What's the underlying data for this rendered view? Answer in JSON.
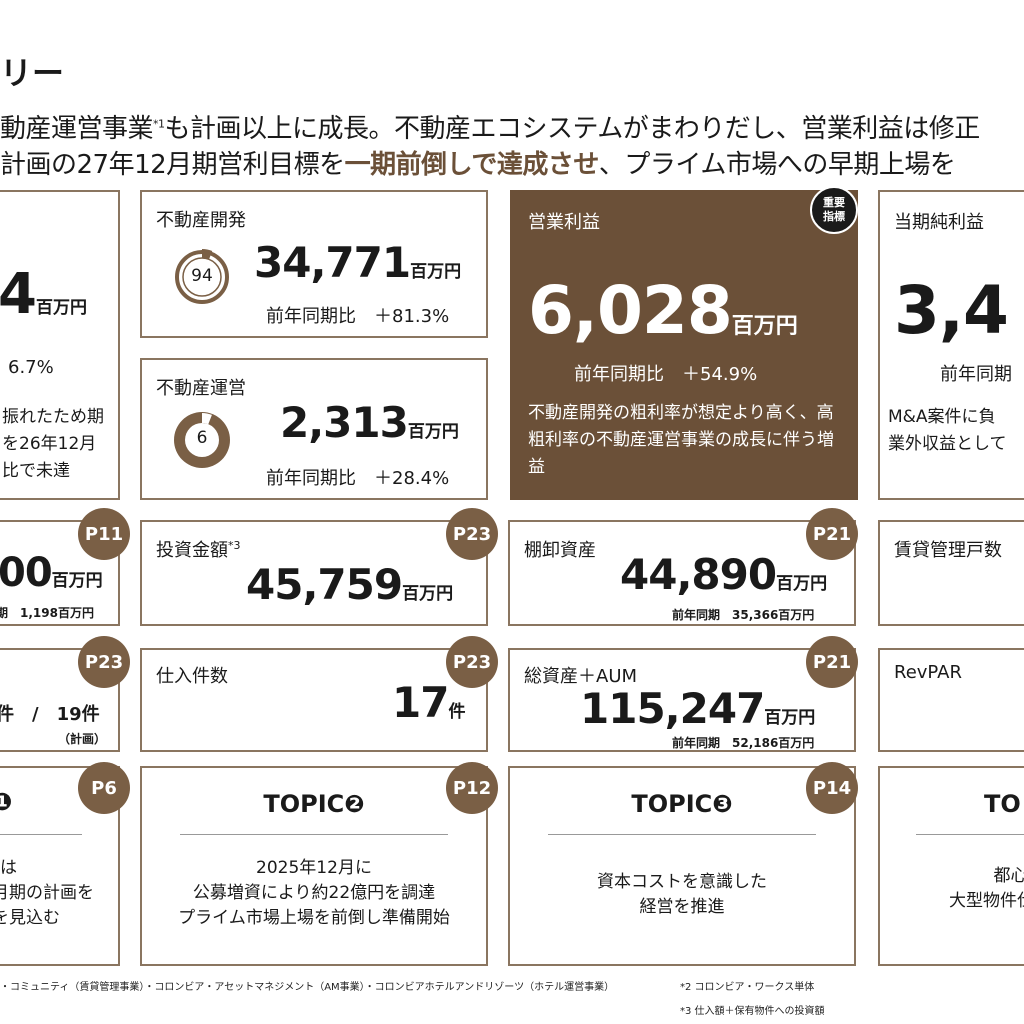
{
  "header": {
    "title": "リー",
    "lead_line1_a": "動産運営事業",
    "lead_line1_sup": "*1",
    "lead_line1_b": "も計画以上に成長。不動産エコシステムがまわりだし、営業利益は修正",
    "lead_line2_a": "計画の27年12月期営利目標を",
    "lead_line2_hl": "一期前倒しで達成させ",
    "lead_line2_b": "、プライム市場への早期上場を"
  },
  "card_left_partial": {
    "value": "4",
    "unit": "百万円",
    "yoy": "6.7%",
    "desc1": "振れたため期",
    "desc2": "を26年12月",
    "desc3": "比で未達"
  },
  "card_dev": {
    "label": "不動産開発",
    "ring_value": "94",
    "ring_fill": 0.06,
    "value": "34,771",
    "unit": "百万円",
    "yoy": "前年同期比　＋81.3%"
  },
  "card_ops": {
    "label": "不動産運営",
    "ring_value": "6",
    "ring_fill": 0.94,
    "value": "2,313",
    "unit": "百万円",
    "yoy": "前年同期比　＋28.4%"
  },
  "card_op_income": {
    "label": "営業利益",
    "badge_line1": "重要",
    "badge_line2": "指標",
    "value": "6,028",
    "unit": "百万円",
    "yoy": "前年同期比　＋54.9%",
    "desc": "不動産開発の粗利率が想定より高く、高粗利率の不動産運営事業の成長に伴う増益"
  },
  "card_net_income": {
    "label": "当期純利益",
    "value": "3,4",
    "yoy": "前年同期",
    "desc1": "M&A案件に負",
    "desc2": "業外収益として"
  },
  "row2": {
    "left_value": "00",
    "left_unit": "百万円",
    "left_prev": "期　1,198百万円",
    "left_badge": "P11",
    "invest_label": "投資金額",
    "invest_sup": "*3",
    "invest_value": "45,759",
    "invest_unit": "百万円",
    "invest_badge": "P23",
    "inv_label": "棚卸資産",
    "inv_value": "44,890",
    "inv_unit": "百万円",
    "inv_prev": "前年同期　35,366百万円",
    "inv_badge": "P21",
    "rent_label": "賃貸管理戸数"
  },
  "row3": {
    "left_value": "件　/　19件",
    "left_note": "（計画）",
    "left_badge": "P23",
    "purchase_label": "仕入件数",
    "purchase_value": "17",
    "purchase_unit": "件",
    "purchase_badge": "P23",
    "assets_label": "総資産＋AUM",
    "assets_value": "115,247",
    "assets_unit": "百万円",
    "assets_prev": "前年同期　52,186百万円",
    "assets_badge": "P21",
    "revpar_label": "RevPAR"
  },
  "topics": {
    "t1_badge": "P6",
    "t1_line1": "は",
    "t1_line2": "月期の計画を",
    "t1_line3": "を見込む",
    "t2_title": "TOPIC❷",
    "t2_badge": "P12",
    "t2_line1": "2025年12月に",
    "t2_line2": "公募増資により約22億円を調達",
    "t2_line3": "プライム市場上場を前倒し準備開始",
    "t3_title": "TOPIC❸",
    "t3_badge": "P14",
    "t3_line1": "資本コストを意識した",
    "t3_line2": "経営を推進",
    "t4_title": "TO",
    "t4_line1": "都心・",
    "t4_line2": "大型物件仕入"
  },
  "footnotes": {
    "f1": "・コミュニティ（賃貸管理事業）・コロンビア・アセットマネジメント（AM事業）・コロンビアホテルアンドリゾーツ（ホテル運営事業）",
    "f2": "*2 コロンビア・ワークス単体",
    "f3": "*3 仕入額＋保有物件への投資額"
  },
  "colors": {
    "brown": "#6b5038",
    "border": "#8a7560",
    "badge": "#7a5f45"
  }
}
